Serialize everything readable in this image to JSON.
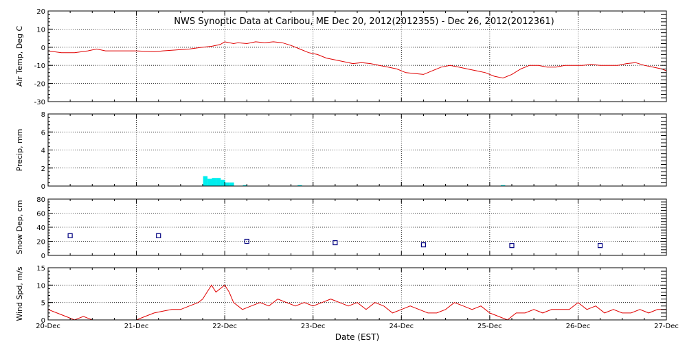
{
  "title": "NWS Synoptic Data at Caribou, ME    Dec 20, 2012(2012355) - Dec 26, 2012(2012361)",
  "xlabel": "Date (EST)",
  "chart_data": [
    {
      "type": "line",
      "ylabel": "Air Temp, Deg C",
      "ylim": [
        -30,
        20
      ],
      "yticks": [
        20,
        10,
        0,
        -10,
        -20,
        -30
      ],
      "xlim": [
        0,
        7
      ],
      "xticks": [
        "20-Dec",
        "21-Dec",
        "22-Dec",
        "23-Dec",
        "24-Dec",
        "25-Dec",
        "26-Dec",
        "27-Dec"
      ],
      "grid": true,
      "color": "#e00000",
      "series": [
        {
          "x": [
            0,
            0.15,
            0.3,
            0.45,
            0.55,
            0.65,
            0.8,
            1.0,
            1.2,
            1.3,
            1.45,
            1.6,
            1.75,
            1.85,
            1.95,
            2.0,
            2.1,
            2.15,
            2.25,
            2.35,
            2.45,
            2.55,
            2.65,
            2.75,
            2.85,
            2.95,
            3.05,
            3.15,
            3.25,
            3.35,
            3.45,
            3.55,
            3.65,
            3.75,
            3.85,
            3.95,
            4.05,
            4.15,
            4.25,
            4.35,
            4.45,
            4.55,
            4.65,
            4.75,
            4.85,
            4.95,
            5.05,
            5.15,
            5.25,
            5.35,
            5.45,
            5.55,
            5.65,
            5.75,
            5.85,
            5.95,
            6.05,
            6.15,
            6.25,
            6.35,
            6.45,
            6.55,
            6.65,
            6.75,
            6.85,
            6.95,
            7.0
          ],
          "y": [
            -2,
            -3,
            -3,
            -2,
            -1,
            -2,
            -2,
            -2,
            -2.5,
            -2,
            -1.5,
            -1,
            0,
            0.5,
            1.5,
            3,
            2,
            2.5,
            2,
            3,
            2.5,
            3,
            2.5,
            1,
            -1,
            -3,
            -4,
            -6,
            -7,
            -8,
            -9,
            -8.5,
            -9,
            -10,
            -11,
            -12,
            -14,
            -14.5,
            -15,
            -13,
            -11,
            -10,
            -11,
            -12,
            -13,
            -14,
            -16,
            -17,
            -15,
            -12,
            -10,
            -10,
            -11,
            -11,
            -10,
            -10,
            -10,
            -9.5,
            -10,
            -10,
            -10,
            -9,
            -8.5,
            -10,
            -11,
            -12,
            -13
          ]
        }
      ]
    },
    {
      "type": "bar",
      "ylabel": "Precip, mm",
      "ylim": [
        0,
        8
      ],
      "yticks": [
        8,
        6,
        4,
        2,
        0
      ],
      "xlim": [
        0,
        7
      ],
      "xticks": [
        "20-Dec",
        "21-Dec",
        "22-Dec",
        "23-Dec",
        "24-Dec",
        "25-Dec",
        "26-Dec",
        "27-Dec"
      ],
      "grid": true,
      "color": "#00eeee",
      "x": [
        1.78,
        1.83,
        1.88,
        1.93,
        1.98,
        2.03,
        2.08,
        2.23,
        2.85,
        5.15
      ],
      "width": 0.05,
      "values": [
        1.1,
        0.8,
        0.9,
        0.9,
        0.7,
        0.4,
        0.4,
        0.1,
        0.1,
        0.1
      ]
    },
    {
      "type": "scatter",
      "ylabel": "Snow Dep, cm",
      "ylim": [
        0,
        80
      ],
      "yticks": [
        80,
        60,
        40,
        20,
        0
      ],
      "xlim": [
        0,
        7
      ],
      "xticks": [
        "20-Dec",
        "21-Dec",
        "22-Dec",
        "23-Dec",
        "24-Dec",
        "25-Dec",
        "26-Dec",
        "27-Dec"
      ],
      "grid": true,
      "color": "#000080",
      "series": [
        {
          "x": [
            0.25,
            1.25,
            2.25,
            3.25,
            4.25,
            5.25,
            6.25
          ],
          "y": [
            28,
            28,
            20,
            18,
            15,
            14,
            14
          ]
        }
      ]
    },
    {
      "type": "line",
      "ylabel": "Wind Spd, m/s",
      "ylim": [
        0,
        15
      ],
      "yticks": [
        15,
        10,
        5,
        0
      ],
      "xlim": [
        0,
        7
      ],
      "xticks": [
        "20-Dec",
        "21-Dec",
        "22-Dec",
        "23-Dec",
        "24-Dec",
        "25-Dec",
        "26-Dec",
        "27-Dec"
      ],
      "grid": true,
      "color": "#e00000",
      "series": [
        {
          "x": [
            0,
            0.1,
            0.2,
            0.3,
            0.4,
            0.5,
            0.6,
            0.7,
            0.8,
            0.9,
            1.0,
            1.1,
            1.2,
            1.3,
            1.4,
            1.5,
            1.6,
            1.7,
            1.75,
            1.8,
            1.85,
            1.9,
            1.95,
            2.0,
            2.05,
            2.1,
            2.2,
            2.3,
            2.4,
            2.5,
            2.6,
            2.7,
            2.8,
            2.9,
            3.0,
            3.1,
            3.2,
            3.3,
            3.4,
            3.5,
            3.6,
            3.7,
            3.8,
            3.9,
            4.0,
            4.1,
            4.2,
            4.3,
            4.4,
            4.5,
            4.6,
            4.7,
            4.8,
            4.9,
            5.0,
            5.1,
            5.2,
            5.3,
            5.4,
            5.5,
            5.6,
            5.7,
            5.8,
            5.9,
            6.0,
            6.1,
            6.2,
            6.3,
            6.4,
            6.5,
            6.6,
            6.7,
            6.8,
            6.9,
            7.0
          ],
          "y": [
            3,
            2,
            1,
            0,
            1,
            0,
            0,
            0,
            0,
            0,
            0,
            1,
            2,
            2.5,
            3,
            3,
            4,
            5,
            6,
            8,
            10,
            8,
            9,
            10,
            8,
            5,
            3,
            4,
            5,
            4,
            6,
            5,
            4,
            5,
            4,
            5,
            6,
            5,
            4,
            5,
            3,
            5,
            4,
            2,
            3,
            4,
            3,
            2,
            2,
            3,
            5,
            4,
            3,
            4,
            2,
            1,
            0,
            2,
            2,
            3,
            2,
            3,
            3,
            3,
            5,
            3,
            4,
            2,
            3,
            2,
            2,
            3,
            2,
            3,
            3
          ]
        }
      ]
    }
  ]
}
